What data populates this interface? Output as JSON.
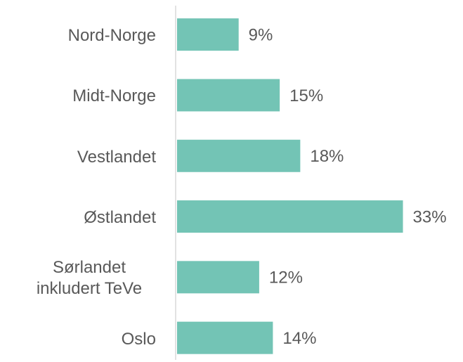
{
  "chart_data": {
    "type": "bar",
    "orientation": "horizontal",
    "categories": [
      "Nord-Norge",
      "Midt-Norge",
      "Vestlandet",
      "Østlandet",
      "Sørlandet inkludert TeVe",
      "Oslo"
    ],
    "values": [
      9,
      15,
      18,
      33,
      12,
      14
    ],
    "value_labels": [
      "9%",
      "15%",
      "18%",
      "33%",
      "12%",
      "14%"
    ],
    "color": "#73c4b5",
    "xlim": [
      0,
      35
    ]
  }
}
